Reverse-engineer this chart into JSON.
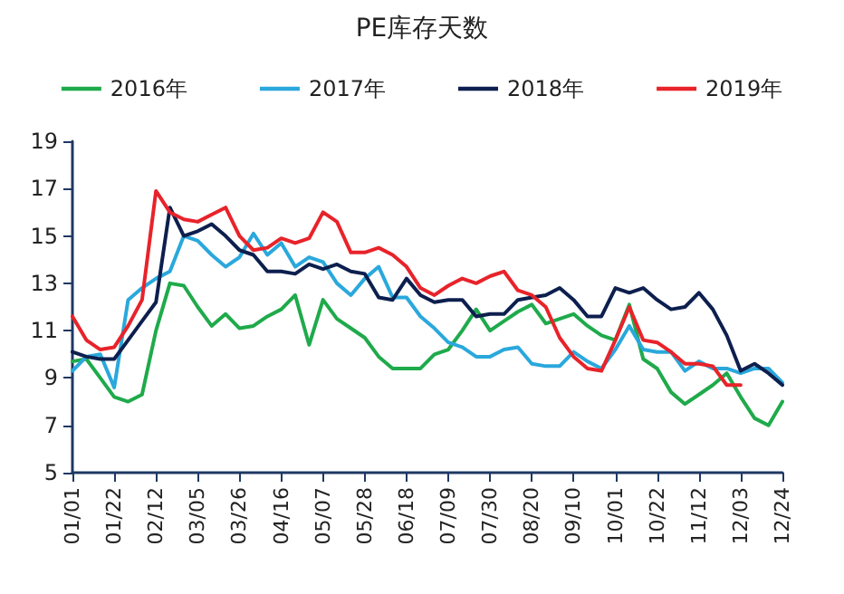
{
  "chart_data": {
    "type": "line",
    "title": "PE库存天数",
    "categories": [
      "01/01",
      null,
      null,
      "01/22",
      null,
      null,
      "02/12",
      null,
      null,
      "03/05",
      null,
      null,
      "03/26",
      null,
      null,
      "04/16",
      null,
      null,
      "05/07",
      null,
      null,
      "05/28",
      null,
      null,
      "06/18",
      null,
      null,
      "07/09",
      null,
      null,
      "07/30",
      null,
      null,
      "08/20",
      null,
      null,
      "09/10",
      null,
      null,
      "10/01",
      null,
      null,
      "10/22",
      null,
      null,
      "11/12",
      null,
      null,
      "12/03",
      null,
      null,
      "12/24"
    ],
    "series": [
      {
        "name": "2016年",
        "color": "#1faa4b",
        "values": [
          9.7,
          9.8,
          9.0,
          8.2,
          8.0,
          8.3,
          11.0,
          13.0,
          12.9,
          12.0,
          11.2,
          11.7,
          11.1,
          11.2,
          11.6,
          11.9,
          12.5,
          10.4,
          12.3,
          11.5,
          11.1,
          10.7,
          9.9,
          9.4,
          9.4,
          9.4,
          10.0,
          10.2,
          11.0,
          11.9,
          11.0,
          11.4,
          11.8,
          12.1,
          11.3,
          11.5,
          11.7,
          11.2,
          10.8,
          10.6,
          12.1,
          9.8,
          9.4,
          8.4,
          7.9,
          8.3,
          8.7,
          9.2,
          8.2,
          7.3,
          7.0,
          8.0
        ]
      },
      {
        "name": "2017年",
        "color": "#2aa8dc",
        "values": [
          9.3,
          9.9,
          10.0,
          8.6,
          12.3,
          12.8,
          13.2,
          13.5,
          15.0,
          14.8,
          14.2,
          13.7,
          14.1,
          15.1,
          14.2,
          14.7,
          13.7,
          14.1,
          13.9,
          13.0,
          12.5,
          13.2,
          13.7,
          12.4,
          12.4,
          11.6,
          11.1,
          10.5,
          10.3,
          9.9,
          9.9,
          10.2,
          10.3,
          9.6,
          9.5,
          9.5,
          10.1,
          9.7,
          9.4,
          10.2,
          11.2,
          10.2,
          10.1,
          10.1,
          9.3,
          9.7,
          9.4,
          9.4,
          9.2,
          9.4,
          9.4,
          8.8
        ]
      },
      {
        "name": "2018年",
        "color": "#0d1f4e",
        "values": [
          10.1,
          9.9,
          9.8,
          9.8,
          10.6,
          11.4,
          12.2,
          16.2,
          15.0,
          15.2,
          15.5,
          15.0,
          14.4,
          14.2,
          13.5,
          13.5,
          13.4,
          13.8,
          13.6,
          13.8,
          13.5,
          13.4,
          12.4,
          12.3,
          13.2,
          12.5,
          12.2,
          12.3,
          12.3,
          11.6,
          11.7,
          11.7,
          12.3,
          12.4,
          12.5,
          12.8,
          12.3,
          11.6,
          11.6,
          12.8,
          12.6,
          12.8,
          12.3,
          11.9,
          12.0,
          12.6,
          11.9,
          10.8,
          9.3,
          9.6,
          9.2,
          8.7
        ]
      },
      {
        "name": "2019年",
        "color": "#e8232a",
        "values": [
          11.6,
          10.6,
          10.2,
          10.3,
          11.2,
          12.3,
          16.9,
          16.0,
          15.7,
          15.6,
          15.9,
          16.2,
          15.0,
          14.4,
          14.5,
          14.9,
          14.7,
          14.9,
          16.0,
          15.6,
          14.3,
          14.3,
          14.5,
          14.2,
          13.7,
          12.8,
          12.5,
          12.9,
          13.2,
          13.0,
          13.3,
          13.5,
          12.7,
          12.5,
          12.0,
          10.7,
          9.9,
          9.4,
          9.3,
          10.6,
          12.0,
          10.6,
          10.5,
          10.1,
          9.6,
          9.6,
          9.5,
          8.7,
          8.7,
          null,
          null,
          null
        ]
      }
    ],
    "ylim": [
      5,
      19
    ],
    "yticks": [
      5,
      7,
      9,
      11,
      13,
      15,
      17,
      19
    ],
    "grid": false,
    "legend": "top",
    "marker": "none",
    "line_style": "solid"
  }
}
